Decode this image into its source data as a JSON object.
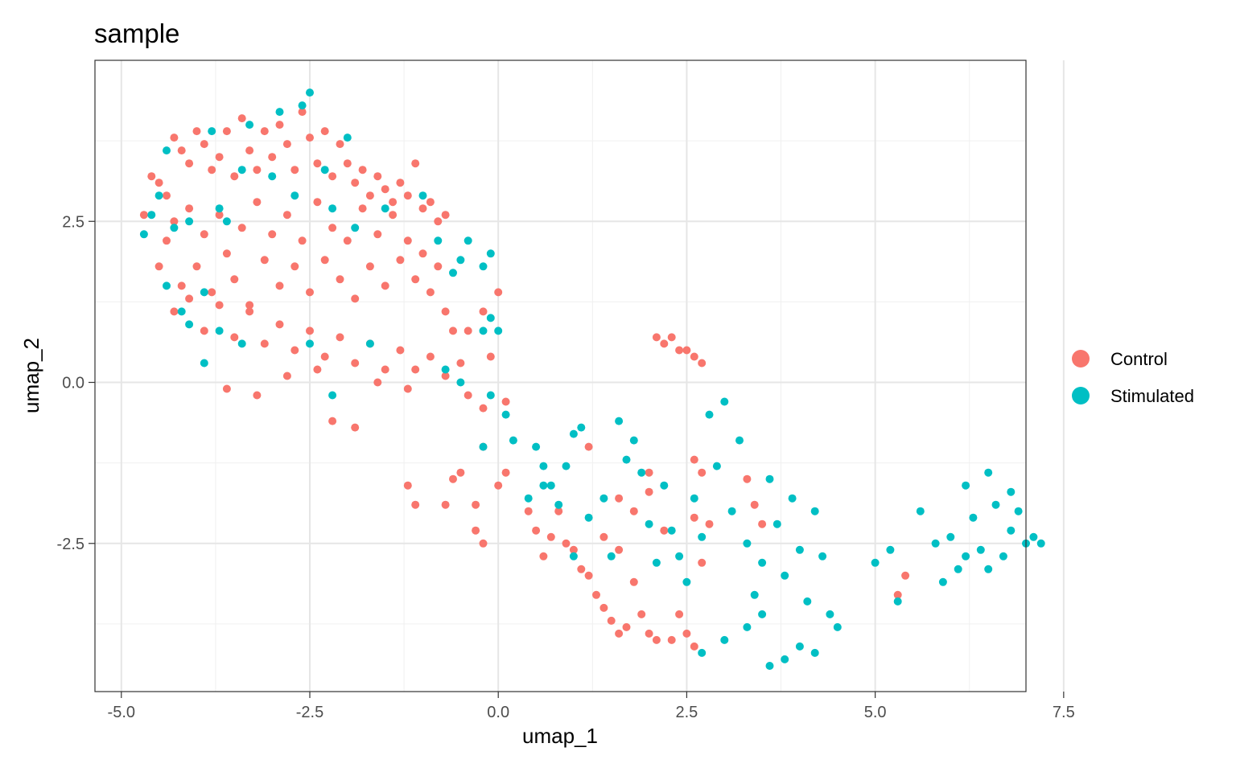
{
  "chart_data": {
    "type": "scatter",
    "title": "sample",
    "xlabel": "umap_1",
    "ylabel": "umap_2",
    "xlim": [
      -5.35,
      7.0
    ],
    "ylim": [
      -4.8,
      5.0
    ],
    "x_ticks": [
      -5.0,
      -2.5,
      0.0,
      2.5,
      5.0,
      7.5
    ],
    "x_tick_labels": [
      "-5.0",
      "-2.5",
      "0.0",
      "2.5",
      "5.0",
      "7.5"
    ],
    "y_ticks": [
      -2.5,
      0.0,
      2.5
    ],
    "y_tick_labels": [
      "-2.5",
      "0.0",
      "2.5"
    ],
    "grid": true,
    "legend_position": "right",
    "series": [
      {
        "name": "Control",
        "color": "#F8766D",
        "points": [
          [
            -4.7,
            2.6
          ],
          [
            -4.6,
            3.2
          ],
          [
            -4.5,
            3.1
          ],
          [
            -4.4,
            2.9
          ],
          [
            -4.3,
            3.8
          ],
          [
            -4.2,
            3.6
          ],
          [
            -4.1,
            3.4
          ],
          [
            -4.0,
            3.9
          ],
          [
            -3.9,
            3.7
          ],
          [
            -3.8,
            3.3
          ],
          [
            -3.7,
            3.5
          ],
          [
            -3.6,
            3.9
          ],
          [
            -3.5,
            3.2
          ],
          [
            -3.4,
            4.1
          ],
          [
            -3.3,
            3.6
          ],
          [
            -3.2,
            3.3
          ],
          [
            -3.1,
            3.9
          ],
          [
            -3.0,
            3.5
          ],
          [
            -2.9,
            4.0
          ],
          [
            -2.8,
            3.7
          ],
          [
            -2.7,
            3.3
          ],
          [
            -2.6,
            4.2
          ],
          [
            -2.5,
            3.8
          ],
          [
            -2.4,
            3.4
          ],
          [
            -2.3,
            3.9
          ],
          [
            -2.2,
            3.2
          ],
          [
            -2.1,
            3.7
          ],
          [
            -2.0,
            3.4
          ],
          [
            -1.9,
            3.1
          ],
          [
            -1.8,
            3.3
          ],
          [
            -1.7,
            2.9
          ],
          [
            -1.6,
            3.2
          ],
          [
            -1.5,
            3.0
          ],
          [
            -1.4,
            2.8
          ],
          [
            -1.3,
            3.1
          ],
          [
            -1.2,
            2.9
          ],
          [
            -1.1,
            3.4
          ],
          [
            -1.0,
            2.7
          ],
          [
            -0.9,
            2.8
          ],
          [
            -0.8,
            2.5
          ],
          [
            -0.7,
            2.6
          ],
          [
            -4.5,
            1.8
          ],
          [
            -4.4,
            2.2
          ],
          [
            -4.3,
            2.5
          ],
          [
            -4.2,
            1.5
          ],
          [
            -4.1,
            2.7
          ],
          [
            -4.0,
            1.8
          ],
          [
            -3.9,
            2.3
          ],
          [
            -3.8,
            1.4
          ],
          [
            -3.7,
            2.6
          ],
          [
            -3.6,
            2.0
          ],
          [
            -3.5,
            1.6
          ],
          [
            -3.4,
            2.4
          ],
          [
            -3.3,
            1.2
          ],
          [
            -3.2,
            2.8
          ],
          [
            -3.1,
            1.9
          ],
          [
            -3.0,
            2.3
          ],
          [
            -2.9,
            1.5
          ],
          [
            -2.8,
            2.6
          ],
          [
            -2.7,
            1.8
          ],
          [
            -2.6,
            2.2
          ],
          [
            -2.5,
            1.4
          ],
          [
            -2.4,
            2.8
          ],
          [
            -2.3,
            1.9
          ],
          [
            -2.2,
            2.4
          ],
          [
            -2.1,
            1.6
          ],
          [
            -2.0,
            2.2
          ],
          [
            -1.9,
            1.3
          ],
          [
            -1.8,
            2.7
          ],
          [
            -1.7,
            1.8
          ],
          [
            -1.6,
            2.3
          ],
          [
            -1.5,
            1.5
          ],
          [
            -1.4,
            2.6
          ],
          [
            -1.3,
            1.9
          ],
          [
            -1.2,
            2.2
          ],
          [
            -1.1,
            1.6
          ],
          [
            -1.0,
            2.0
          ],
          [
            -0.9,
            1.4
          ],
          [
            -0.8,
            1.8
          ],
          [
            -0.7,
            1.1
          ],
          [
            -4.3,
            1.1
          ],
          [
            -4.1,
            1.3
          ],
          [
            -3.9,
            0.8
          ],
          [
            -3.7,
            1.2
          ],
          [
            -3.5,
            0.7
          ],
          [
            -3.3,
            1.1
          ],
          [
            -3.1,
            0.6
          ],
          [
            -2.9,
            0.9
          ],
          [
            -2.7,
            0.5
          ],
          [
            -2.5,
            0.8
          ],
          [
            -2.3,
            0.4
          ],
          [
            -2.1,
            0.7
          ],
          [
            -1.9,
            0.3
          ],
          [
            -1.7,
            0.6
          ],
          [
            -1.5,
            0.2
          ],
          [
            -1.3,
            0.5
          ],
          [
            -1.1,
            0.2
          ],
          [
            -0.9,
            0.4
          ],
          [
            -0.7,
            0.1
          ],
          [
            -0.5,
            0.3
          ],
          [
            -3.6,
            -0.1
          ],
          [
            -3.2,
            -0.2
          ],
          [
            -2.8,
            0.1
          ],
          [
            -2.4,
            0.2
          ],
          [
            -2.2,
            -0.6
          ],
          [
            -1.9,
            -0.7
          ],
          [
            -1.6,
            0.0
          ],
          [
            -1.2,
            -0.1
          ],
          [
            -0.6,
            0.8
          ],
          [
            -0.4,
            0.8
          ],
          [
            -0.2,
            1.1
          ],
          [
            -0.1,
            0.4
          ],
          [
            0.0,
            1.4
          ],
          [
            -0.4,
            -0.2
          ],
          [
            -0.2,
            -0.4
          ],
          [
            0.1,
            -0.3
          ],
          [
            -0.2,
            -1.0
          ],
          [
            -0.6,
            -1.5
          ],
          [
            -1.2,
            -1.6
          ],
          [
            -1.1,
            -1.9
          ],
          [
            -0.7,
            -1.9
          ],
          [
            -0.5,
            -1.4
          ],
          [
            -0.3,
            -1.9
          ],
          [
            -0.3,
            -2.3
          ],
          [
            -0.2,
            -2.5
          ],
          [
            0.1,
            -1.4
          ],
          [
            0.0,
            -1.6
          ],
          [
            0.4,
            -2.0
          ],
          [
            0.5,
            -2.3
          ],
          [
            0.6,
            -2.7
          ],
          [
            0.7,
            -2.4
          ],
          [
            0.8,
            -2.0
          ],
          [
            0.9,
            -2.5
          ],
          [
            1.0,
            -2.6
          ],
          [
            1.1,
            -2.9
          ],
          [
            1.2,
            -3.0
          ],
          [
            1.3,
            -3.3
          ],
          [
            1.4,
            -3.5
          ],
          [
            1.5,
            -3.7
          ],
          [
            1.6,
            -3.9
          ],
          [
            1.7,
            -3.8
          ],
          [
            1.8,
            -3.1
          ],
          [
            1.9,
            -3.6
          ],
          [
            2.0,
            -3.9
          ],
          [
            2.1,
            -4.0
          ],
          [
            2.3,
            -4.0
          ],
          [
            2.4,
            -3.6
          ],
          [
            2.5,
            -3.9
          ],
          [
            2.6,
            -4.1
          ],
          [
            2.7,
            -2.8
          ],
          [
            2.8,
            -2.2
          ],
          [
            1.4,
            -2.4
          ],
          [
            1.6,
            -2.6
          ],
          [
            1.8,
            -2.0
          ],
          [
            2.0,
            -1.7
          ],
          [
            2.2,
            -2.3
          ],
          [
            2.6,
            -2.1
          ],
          [
            2.6,
            -1.2
          ],
          [
            2.7,
            -1.4
          ],
          [
            3.3,
            -1.5
          ],
          [
            3.4,
            -1.9
          ],
          [
            3.5,
            -2.2
          ],
          [
            1.2,
            -1.0
          ],
          [
            1.6,
            -1.8
          ],
          [
            2.0,
            -1.4
          ],
          [
            2.2,
            0.6
          ],
          [
            2.3,
            0.7
          ],
          [
            2.4,
            0.5
          ],
          [
            2.5,
            0.5
          ],
          [
            2.6,
            0.4
          ],
          [
            2.7,
            0.3
          ],
          [
            2.1,
            0.7
          ],
          [
            5.3,
            -3.3
          ],
          [
            5.4,
            -3.0
          ]
        ]
      },
      {
        "name": "Stimulated",
        "color": "#00BFC4",
        "points": [
          [
            -4.7,
            2.3
          ],
          [
            -4.6,
            2.6
          ],
          [
            -4.5,
            2.9
          ],
          [
            -4.4,
            3.6
          ],
          [
            -4.3,
            2.4
          ],
          [
            -4.2,
            1.1
          ],
          [
            -4.1,
            2.5
          ],
          [
            -3.9,
            1.4
          ],
          [
            -3.8,
            3.9
          ],
          [
            -3.7,
            2.7
          ],
          [
            -3.6,
            2.5
          ],
          [
            -3.4,
            3.3
          ],
          [
            -3.3,
            4.0
          ],
          [
            -3.0,
            3.2
          ],
          [
            -2.9,
            4.2
          ],
          [
            -2.7,
            2.9
          ],
          [
            -2.6,
            4.3
          ],
          [
            -2.5,
            4.5
          ],
          [
            -2.3,
            3.3
          ],
          [
            -2.2,
            2.7
          ],
          [
            -2.0,
            3.8
          ],
          [
            -1.9,
            2.4
          ],
          [
            -1.5,
            2.7
          ],
          [
            -1.0,
            2.9
          ],
          [
            -0.8,
            2.2
          ],
          [
            -0.6,
            1.7
          ],
          [
            -0.4,
            2.2
          ],
          [
            -0.2,
            1.8
          ],
          [
            -0.1,
            2.0
          ],
          [
            -0.5,
            1.9
          ],
          [
            -4.4,
            1.5
          ],
          [
            -4.1,
            0.9
          ],
          [
            -3.9,
            0.3
          ],
          [
            -3.7,
            0.8
          ],
          [
            -3.4,
            0.6
          ],
          [
            -2.5,
            0.6
          ],
          [
            -2.2,
            -0.2
          ],
          [
            -1.7,
            0.6
          ],
          [
            -0.2,
            0.8
          ],
          [
            -0.1,
            1.0
          ],
          [
            0.0,
            0.8
          ],
          [
            -0.7,
            0.2
          ],
          [
            -0.5,
            0.0
          ],
          [
            -0.1,
            -0.2
          ],
          [
            0.1,
            -0.5
          ],
          [
            0.2,
            -0.9
          ],
          [
            0.5,
            -1.0
          ],
          [
            0.6,
            -1.3
          ],
          [
            0.7,
            -1.6
          ],
          [
            0.8,
            -1.9
          ],
          [
            0.9,
            -1.3
          ],
          [
            1.0,
            -0.8
          ],
          [
            1.1,
            -0.7
          ],
          [
            1.2,
            -2.1
          ],
          [
            1.4,
            -1.8
          ],
          [
            1.5,
            -2.7
          ],
          [
            1.6,
            -0.6
          ],
          [
            1.7,
            -1.2
          ],
          [
            1.8,
            -0.9
          ],
          [
            1.9,
            -1.4
          ],
          [
            2.0,
            -2.2
          ],
          [
            2.1,
            -2.8
          ],
          [
            2.2,
            -1.6
          ],
          [
            2.3,
            -2.3
          ],
          [
            2.4,
            -2.7
          ],
          [
            2.5,
            -3.1
          ],
          [
            2.6,
            -1.8
          ],
          [
            2.7,
            -2.4
          ],
          [
            2.8,
            -0.5
          ],
          [
            2.9,
            -1.3
          ],
          [
            3.0,
            -0.3
          ],
          [
            3.1,
            -2.0
          ],
          [
            3.2,
            -0.9
          ],
          [
            3.3,
            -2.5
          ],
          [
            3.4,
            -3.3
          ],
          [
            3.5,
            -2.8
          ],
          [
            3.6,
            -1.5
          ],
          [
            3.7,
            -2.2
          ],
          [
            3.8,
            -3.0
          ],
          [
            3.9,
            -1.8
          ],
          [
            4.0,
            -2.6
          ],
          [
            4.1,
            -3.4
          ],
          [
            4.2,
            -2.0
          ],
          [
            4.3,
            -2.7
          ],
          [
            4.4,
            -3.6
          ],
          [
            4.5,
            -3.8
          ],
          [
            3.6,
            -4.4
          ],
          [
            3.8,
            -4.3
          ],
          [
            4.0,
            -4.1
          ],
          [
            4.2,
            -4.2
          ],
          [
            2.7,
            -4.2
          ],
          [
            3.0,
            -4.0
          ],
          [
            3.3,
            -3.8
          ],
          [
            3.5,
            -3.6
          ],
          [
            1.0,
            -2.7
          ],
          [
            0.6,
            -1.6
          ],
          [
            -0.2,
            -1.0
          ],
          [
            0.4,
            -1.8
          ],
          [
            5.2,
            -2.6
          ],
          [
            5.0,
            -2.8
          ],
          [
            5.3,
            -3.4
          ],
          [
            5.6,
            -2.0
          ],
          [
            5.8,
            -2.5
          ],
          [
            5.9,
            -3.1
          ],
          [
            6.0,
            -2.4
          ],
          [
            6.1,
            -2.9
          ],
          [
            6.2,
            -1.6
          ],
          [
            6.3,
            -2.1
          ],
          [
            6.4,
            -2.6
          ],
          [
            6.5,
            -1.4
          ],
          [
            6.6,
            -1.9
          ],
          [
            6.7,
            -2.7
          ],
          [
            6.8,
            -2.3
          ],
          [
            6.9,
            -2.0
          ],
          [
            7.0,
            -2.5
          ],
          [
            7.1,
            -2.4
          ],
          [
            7.2,
            -2.5
          ],
          [
            6.5,
            -2.9
          ],
          [
            6.8,
            -1.7
          ],
          [
            6.2,
            -2.7
          ]
        ]
      }
    ]
  }
}
